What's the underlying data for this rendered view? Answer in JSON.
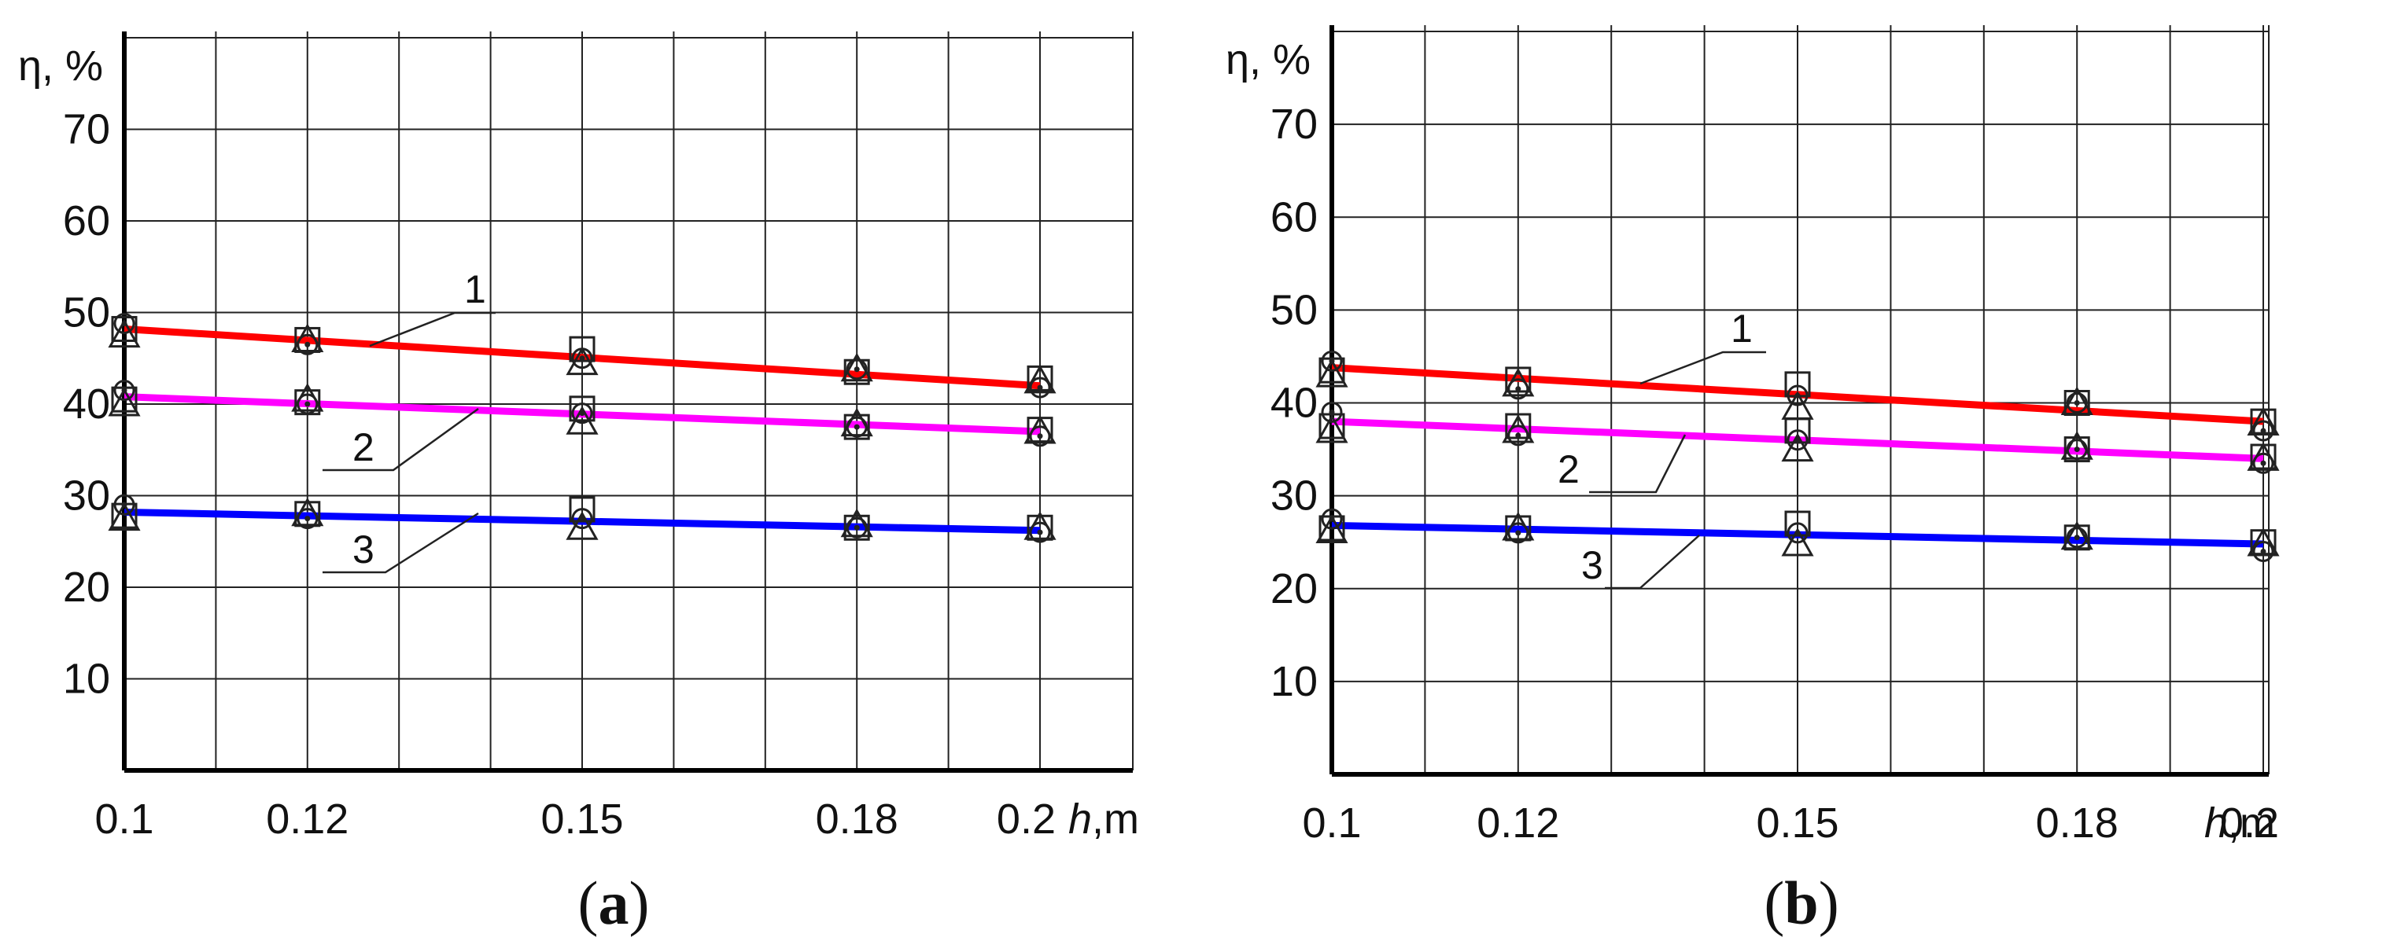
{
  "chart_data": [
    {
      "type": "line",
      "panel_label": "a",
      "ylabel": "η, %",
      "xlabel_var": "h",
      "xlabel_unit": ",m",
      "x_ticks": [
        "0.1",
        "0.12",
        "0.15",
        "0.18",
        "0.2"
      ],
      "y_ticks": [
        "10",
        "20",
        "30",
        "40",
        "50",
        "60",
        "70"
      ],
      "xlim": [
        0.1,
        0.21
      ],
      "ylim": [
        0,
        80
      ],
      "grid": true,
      "series": [
        {
          "label": "1",
          "color": "#ff0000",
          "line": {
            "x": [
              0.1,
              0.2
            ],
            "y": [
              48.2,
              42.0
            ]
          },
          "circles": {
            "x": [
              0.1,
              0.12,
              0.15,
              0.18,
              0.2
            ],
            "y": [
              48.8,
              46.5,
              45.0,
              43.8,
              41.8
            ]
          },
          "squares": {
            "x": [
              0.1,
              0.12,
              0.15,
              0.18,
              0.2
            ],
            "y": [
              48.2,
              47.0,
              46.0,
              43.5,
              42.8
            ]
          },
          "triangles": {
            "x": [
              0.1,
              0.12,
              0.15,
              0.18,
              0.2
            ],
            "y": [
              47.5,
              47.0,
              44.5,
              43.8,
              42.5
            ]
          }
        },
        {
          "label": "2",
          "color": "#ff00ff",
          "line": {
            "x": [
              0.1,
              0.2
            ],
            "y": [
              40.8,
              37.0
            ]
          },
          "circles": {
            "x": [
              0.1,
              0.12,
              0.15,
              0.18,
              0.2
            ],
            "y": [
              41.5,
              40.0,
              39.0,
              37.5,
              36.5
            ]
          },
          "squares": {
            "x": [
              0.1,
              0.12,
              0.15,
              0.18,
              0.2
            ],
            "y": [
              40.5,
              40.2,
              39.5,
              37.5,
              37.2
            ]
          },
          "triangles": {
            "x": [
              0.1,
              0.12,
              0.15,
              0.18,
              0.2
            ],
            "y": [
              40.0,
              40.5,
              38.0,
              37.8,
              37.0
            ]
          }
        },
        {
          "label": "3",
          "color": "#0000ff",
          "line": {
            "x": [
              0.1,
              0.2
            ],
            "y": [
              28.2,
              26.2
            ]
          },
          "circles": {
            "x": [
              0.1,
              0.12,
              0.15,
              0.18,
              0.2
            ],
            "y": [
              29.0,
              27.5,
              27.5,
              26.5,
              26.0
            ]
          },
          "squares": {
            "x": [
              0.1,
              0.12,
              0.15,
              0.18,
              0.2
            ],
            "y": [
              27.8,
              28.0,
              28.5,
              26.5,
              26.5
            ]
          },
          "triangles": {
            "x": [
              0.1,
              0.12,
              0.15,
              0.18,
              0.2
            ],
            "y": [
              27.5,
              28.0,
              26.5,
              26.8,
              26.5
            ]
          }
        }
      ]
    },
    {
      "type": "line",
      "panel_label": "b",
      "ylabel": "η, %",
      "xlabel_var": "h",
      "xlabel_unit": ",m",
      "x_ticks": [
        "0.1",
        "0.12",
        "0.15",
        "0.18",
        "0.2"
      ],
      "y_ticks": [
        "10",
        "20",
        "30",
        "40",
        "50",
        "60",
        "70"
      ],
      "xlim": [
        0.1,
        0.21
      ],
      "ylim": [
        0,
        80
      ],
      "grid": true,
      "series": [
        {
          "label": "1",
          "color": "#ff0000",
          "line": {
            "x": [
              0.1,
              0.2
            ],
            "y": [
              43.8,
              38.0
            ]
          },
          "circles": {
            "x": [
              0.1,
              0.12,
              0.15,
              0.18,
              0.2
            ],
            "y": [
              44.5,
              41.5,
              40.8,
              40.0,
              37.0
            ]
          },
          "squares": {
            "x": [
              0.1,
              0.12,
              0.15,
              0.18,
              0.2
            ],
            "y": [
              43.5,
              42.5,
              42.0,
              40.0,
              38.0
            ]
          },
          "triangles": {
            "x": [
              0.1,
              0.12,
              0.15,
              0.18,
              0.2
            ],
            "y": [
              43.0,
              42.0,
              39.5,
              40.0,
              37.8
            ]
          }
        },
        {
          "label": "2",
          "color": "#ff00ff",
          "line": {
            "x": [
              0.1,
              0.2
            ],
            "y": [
              38.0,
              34.0
            ]
          },
          "circles": {
            "x": [
              0.1,
              0.12,
              0.15,
              0.18,
              0.2
            ],
            "y": [
              39.0,
              36.5,
              36.0,
              35.0,
              33.5
            ]
          },
          "squares": {
            "x": [
              0.1,
              0.12,
              0.15,
              0.18,
              0.2
            ],
            "y": [
              37.5,
              37.5,
              37.0,
              35.0,
              34.2
            ]
          },
          "triangles": {
            "x": [
              0.1,
              0.12,
              0.15,
              0.18,
              0.2
            ],
            "y": [
              37.0,
              37.0,
              35.0,
              35.2,
              34.0
            ]
          }
        },
        {
          "label": "3",
          "color": "#0000ff",
          "line": {
            "x": [
              0.1,
              0.2
            ],
            "y": [
              26.8,
              24.8
            ]
          },
          "circles": {
            "x": [
              0.1,
              0.12,
              0.15,
              0.18,
              0.2
            ],
            "y": [
              27.5,
              26.0,
              26.0,
              25.5,
              24.0
            ]
          },
          "squares": {
            "x": [
              0.1,
              0.12,
              0.15,
              0.18,
              0.2
            ],
            "y": [
              26.5,
              26.5,
              27.0,
              25.5,
              25.0
            ]
          },
          "triangles": {
            "x": [
              0.1,
              0.12,
              0.15,
              0.18,
              0.2
            ],
            "y": [
              26.2,
              26.5,
              24.8,
              25.5,
              24.8
            ]
          }
        }
      ]
    }
  ]
}
